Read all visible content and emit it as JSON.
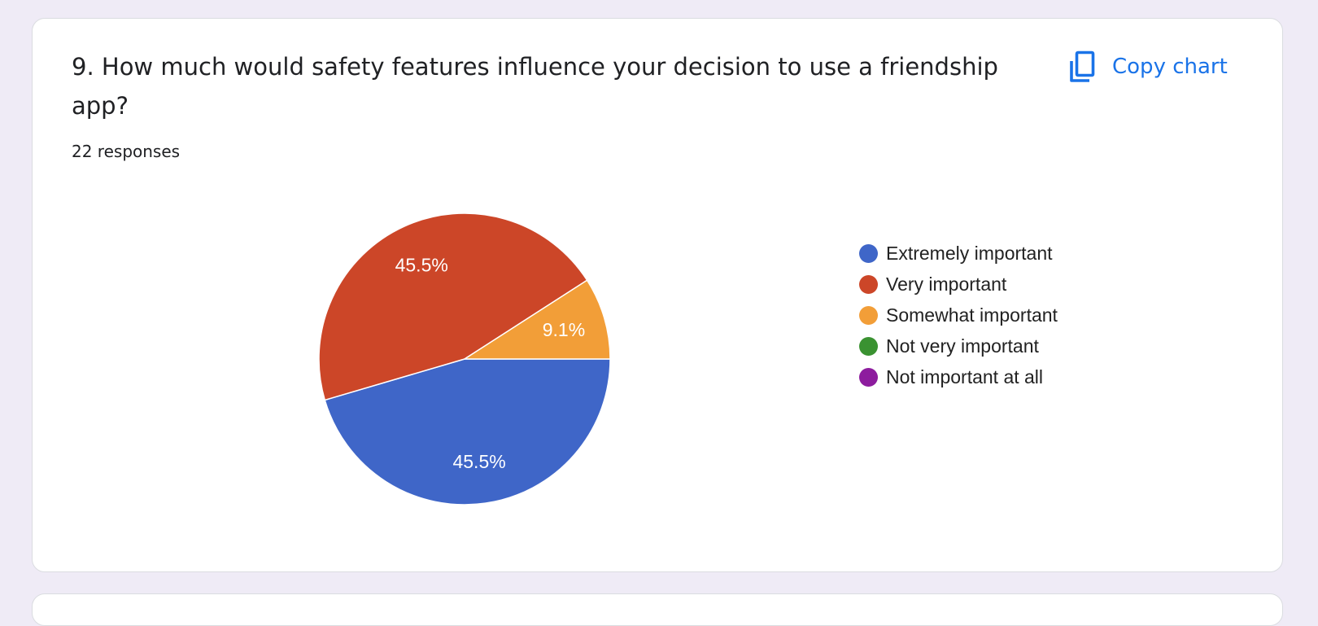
{
  "card": {
    "question": "9. How much would safety features influence your decision to use a friendship app?",
    "responses": "22 responses",
    "copy_chart_label": "Copy chart",
    "copy_icon": "copy-icon",
    "accent_color": "#1a73e8"
  },
  "chart_data": {
    "type": "pie",
    "categories": [
      "Extremely important",
      "Very important",
      "Somewhat important",
      "Not very important",
      "Not important at all"
    ],
    "values": [
      45.5,
      45.5,
      9.1,
      0,
      0
    ],
    "value_labels": [
      "45.5%",
      "45.5%",
      "9.1%",
      "",
      ""
    ],
    "colors": [
      "#3f66c8",
      "#cc4628",
      "#f29e38",
      "#3a9231",
      "#8d1c9e"
    ],
    "legend_position": "right",
    "start": "3 o'clock, clockwise"
  }
}
